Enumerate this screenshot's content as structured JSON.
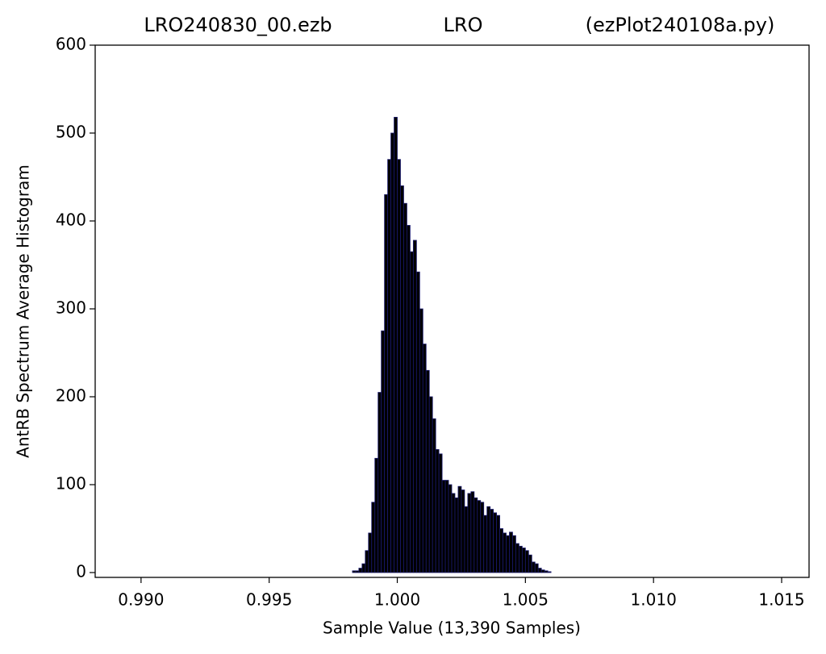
{
  "chart_data": {
    "type": "histogram",
    "titles": [
      "LRO240830_00.ezb",
      "LRO",
      "(ezPlot240108a.py)"
    ],
    "xlabel": "Sample Value (13,390 Samples)",
    "ylabel": "AntRB Spectrum Average Histogram",
    "bins": [
      0.99825,
      0.998375,
      0.9985,
      0.998625,
      0.99875,
      0.998875,
      0.999,
      0.999125,
      0.99925,
      0.999375,
      0.9995,
      0.999625,
      0.99975,
      0.999875,
      1.0,
      1.000125,
      1.00025,
      1.000375,
      1.0005,
      1.000625,
      1.00075,
      1.000875,
      1.001,
      1.001125,
      1.00125,
      1.001375,
      1.0015,
      1.001625,
      1.00175,
      1.001875,
      1.002,
      1.002125,
      1.00225,
      1.002375,
      1.0025,
      1.002625,
      1.00275,
      1.002875,
      1.003,
      1.003125,
      1.00325,
      1.003375,
      1.0035,
      1.003625,
      1.00375,
      1.003875,
      1.004,
      1.004125,
      1.00425,
      1.004375,
      1.0045,
      1.004625,
      1.00475,
      1.004875,
      1.005,
      1.005125,
      1.00525,
      1.005375,
      1.0055,
      1.005625,
      1.00575,
      1.005875,
      1.006
    ],
    "values": [
      2,
      2,
      5,
      10,
      25,
      45,
      80,
      130,
      205,
      275,
      430,
      470,
      500,
      518,
      470,
      440,
      420,
      395,
      365,
      378,
      342,
      300,
      260,
      230,
      200,
      175,
      140,
      135,
      105,
      105,
      100,
      90,
      85,
      98,
      94,
      75,
      90,
      92,
      85,
      82,
      80,
      65,
      75,
      72,
      68,
      65,
      50,
      45,
      42,
      46,
      42,
      33,
      30,
      28,
      25,
      20,
      12,
      10,
      5,
      3,
      2,
      1
    ],
    "color": "#000000",
    "edgecolor": "#1a1a6e",
    "xlim": [
      0.98821,
      1.01607
    ],
    "xticks": [
      {
        "value": 0.99,
        "label": "0.990"
      },
      {
        "value": 0.995,
        "label": "0.995"
      },
      {
        "value": 1.0,
        "label": "1.000"
      },
      {
        "value": 1.005,
        "label": "1.005"
      },
      {
        "value": 1.01,
        "label": "1.010"
      },
      {
        "value": 1.015,
        "label": "1.015"
      }
    ],
    "ylim": [
      -5.5,
      600
    ],
    "yticks": [
      0,
      100,
      200,
      300,
      400,
      500,
      600
    ],
    "grid": false
  }
}
